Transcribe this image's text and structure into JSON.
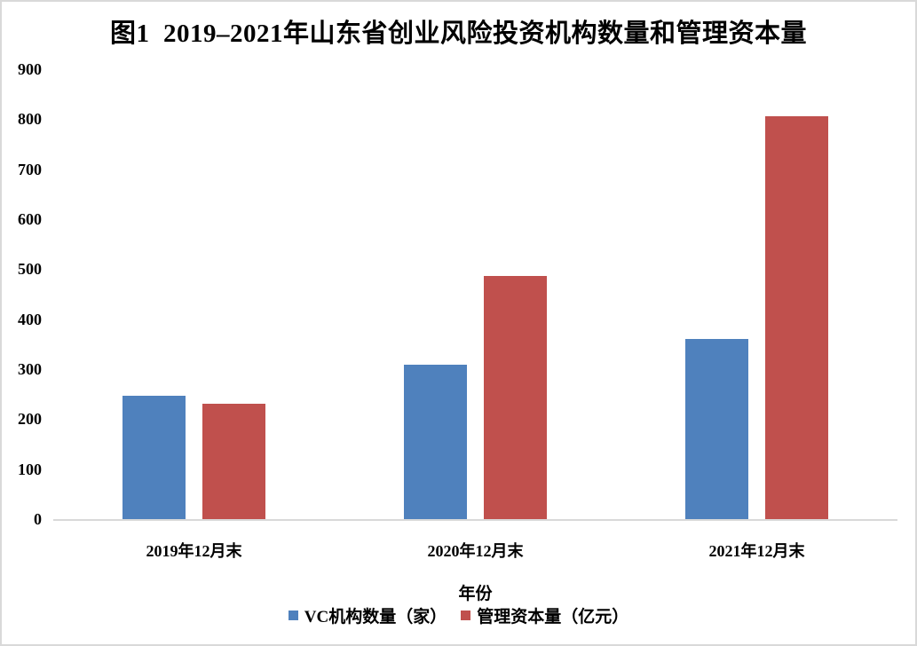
{
  "title": "图1  2019–2021年山东省创业风险投资机构数量和管理资本量",
  "chart_data": {
    "type": "bar",
    "title": "图1  2019–2021年山东省创业风险投资机构数量和管理资本量",
    "categories": [
      "2019年12月末",
      "2020年12月末",
      "2021年12月末"
    ],
    "series": [
      {
        "name": "VC机构数量（家）",
        "color": "#4F81BD",
        "values": [
          246,
          309,
          360
        ]
      },
      {
        "name": "管理资本量（亿元）",
        "color": "#C0504D",
        "values": [
          230,
          487,
          806
        ]
      }
    ],
    "xlabel": "年份",
    "ylabel": "",
    "ylim": [
      0,
      900
    ],
    "ytick_step": 100,
    "grid": false,
    "legend_position": "bottom",
    "axis_color": "#D9D9D9",
    "frame_border_color": "#D9D9D9"
  }
}
